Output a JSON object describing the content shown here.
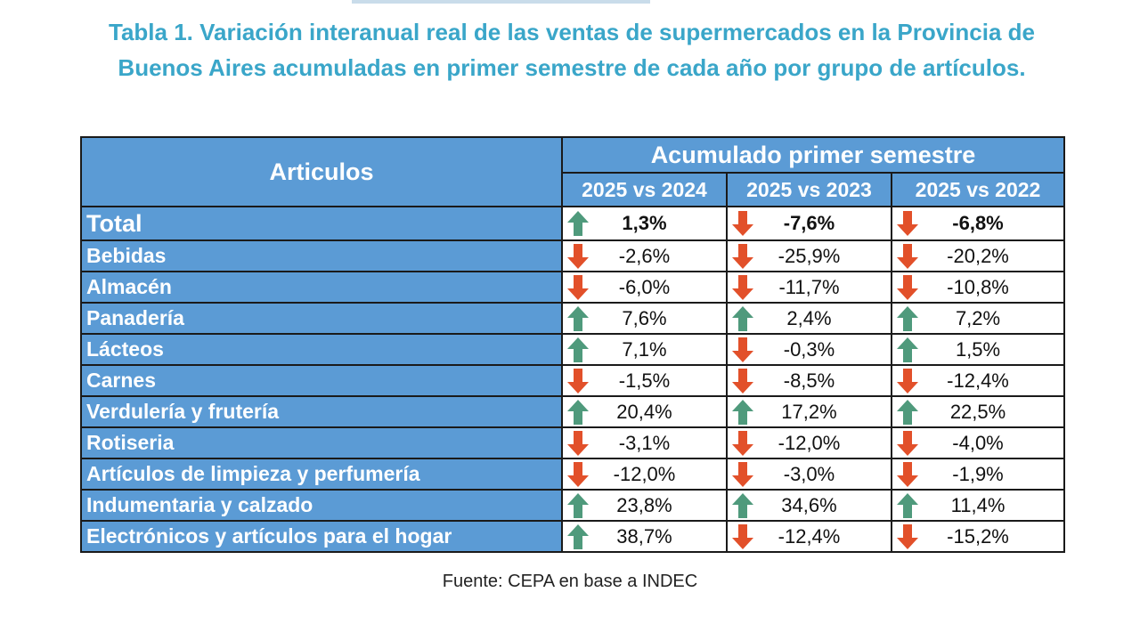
{
  "title": "Tabla 1. Variación interanual real de las ventas de supermercados en la Provincia de Buenos Aires acumuladas en primer semestre de cada año por grupo de artículos.",
  "table": {
    "header_articles": "Articulos",
    "header_group": "Acumulado primer semestre",
    "columns": [
      "2025 vs 2024",
      "2025 vs 2023",
      "2025 vs 2022"
    ],
    "rows": [
      {
        "label": "Total",
        "values": [
          "1,3%",
          "-7,6%",
          "-6,8%"
        ],
        "trends": [
          "up",
          "down",
          "down"
        ]
      },
      {
        "label": "Bebidas",
        "values": [
          "-2,6%",
          "-25,9%",
          "-20,2%"
        ],
        "trends": [
          "down",
          "down",
          "down"
        ]
      },
      {
        "label": "Almacén",
        "values": [
          "-6,0%",
          "-11,7%",
          "-10,8%"
        ],
        "trends": [
          "down",
          "down",
          "down"
        ]
      },
      {
        "label": "Panadería",
        "values": [
          "7,6%",
          "2,4%",
          "7,2%"
        ],
        "trends": [
          "up",
          "up",
          "up"
        ]
      },
      {
        "label": "Lácteos",
        "values": [
          "7,1%",
          "-0,3%",
          "1,5%"
        ],
        "trends": [
          "up",
          "down",
          "up"
        ]
      },
      {
        "label": "Carnes",
        "values": [
          "-1,5%",
          "-8,5%",
          "-12,4%"
        ],
        "trends": [
          "down",
          "down",
          "down"
        ]
      },
      {
        "label": "Verdulería y frutería",
        "values": [
          "20,4%",
          "17,2%",
          "22,5%"
        ],
        "trends": [
          "up",
          "up",
          "up"
        ]
      },
      {
        "label": "Rotiseria",
        "values": [
          "-3,1%",
          "-12,0%",
          "-4,0%"
        ],
        "trends": [
          "down",
          "down",
          "down"
        ]
      },
      {
        "label": "Artículos de limpieza y perfumería",
        "values": [
          "-12,0%",
          "-3,0%",
          "-1,9%"
        ],
        "trends": [
          "down",
          "down",
          "down"
        ]
      },
      {
        "label": "Indumentaria y calzado",
        "values": [
          "23,8%",
          "34,6%",
          "11,4%"
        ],
        "trends": [
          "up",
          "up",
          "up"
        ]
      },
      {
        "label": "Electrónicos y artículos para el hogar",
        "values": [
          "38,7%",
          "-12,4%",
          "-15,2%"
        ],
        "trends": [
          "up",
          "down",
          "down"
        ]
      }
    ]
  },
  "source": "Fuente: CEPA en base a INDEC",
  "colors": {
    "title": "#3aa6c9",
    "header_bg": "#5b9bd5",
    "arrow_up": "#4f9a7c",
    "arrow_down": "#e2502a"
  },
  "icons": {
    "up": "arrow-up-icon",
    "down": "arrow-down-icon"
  }
}
